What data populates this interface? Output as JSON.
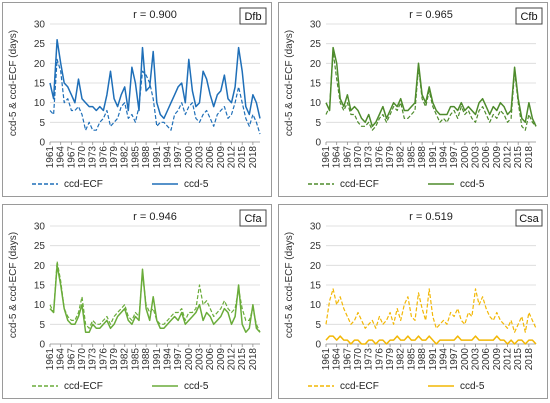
{
  "chart_data": [
    {
      "type": "line",
      "zone": "Dfb",
      "annotation": "r = 0.900",
      "ylabel": "ccd-5 & ccd-ECF (days)",
      "ylim": [
        0,
        30
      ],
      "yticks": [
        0,
        5,
        10,
        15,
        20,
        25,
        30
      ],
      "xticks": [
        1961,
        1964,
        1967,
        1970,
        1973,
        1976,
        1979,
        1982,
        1985,
        1988,
        1991,
        1994,
        1997,
        2000,
        2003,
        2006,
        2009,
        2012,
        2015,
        2018
      ],
      "x_start": 1961,
      "x_end": 2020,
      "color": "#1f6fb8",
      "series": [
        {
          "name": "ccd-ECF",
          "dash": true,
          "values": [
            8,
            7,
            21,
            18,
            10,
            11,
            8,
            8,
            9,
            7,
            3,
            5,
            3,
            3,
            5,
            6,
            8,
            4,
            5,
            6,
            9,
            10,
            6,
            7,
            5,
            9,
            18,
            17,
            15,
            11,
            4,
            5,
            5,
            4,
            3,
            7,
            8,
            10,
            7,
            9,
            10,
            6,
            5,
            7,
            8,
            6,
            4,
            7,
            8,
            9,
            6,
            7,
            10,
            14,
            10,
            6,
            4,
            7,
            5,
            2
          ]
        },
        {
          "name": "ccd-5",
          "dash": false,
          "values": [
            15,
            11,
            26,
            20,
            15,
            14,
            12,
            10,
            16,
            11,
            10,
            9,
            9,
            8,
            9,
            8,
            12,
            18,
            11,
            9,
            12,
            14,
            8,
            19,
            15,
            8,
            24,
            13,
            14,
            23,
            10,
            7,
            6,
            8,
            10,
            12,
            14,
            15,
            10,
            21,
            13,
            9,
            10,
            18,
            16,
            12,
            9,
            12,
            13,
            17,
            11,
            10,
            14,
            24,
            18,
            9,
            7,
            12,
            10,
            6
          ]
        }
      ],
      "legend": [
        "ccd-ECF",
        "ccd-5"
      ]
    },
    {
      "type": "line",
      "zone": "Cfb",
      "annotation": "r = 0.965",
      "ylabel": "ccd-5 & ccd-ECF (days)",
      "ylim": [
        0,
        30
      ],
      "yticks": [
        0,
        5,
        10,
        15,
        20,
        25,
        30
      ],
      "xticks": [
        1961,
        1964,
        1967,
        1970,
        1973,
        1976,
        1979,
        1982,
        1985,
        1988,
        1991,
        1994,
        1997,
        2000,
        2003,
        2006,
        2009,
        2012,
        2015,
        2018
      ],
      "x_start": 1961,
      "x_end": 2020,
      "color": "#4e8b2c",
      "series": [
        {
          "name": "ccd-ECF",
          "dash": true,
          "values": [
            7,
            9,
            23,
            16,
            10,
            8,
            10,
            7,
            7,
            5,
            4,
            4,
            5,
            3,
            4,
            6,
            7,
            5,
            7,
            9,
            8,
            10,
            6,
            6,
            7,
            8,
            19,
            11,
            9,
            13,
            9,
            7,
            5,
            6,
            5,
            7,
            8,
            6,
            9,
            7,
            8,
            6,
            5,
            8,
            9,
            7,
            5,
            7,
            6,
            8,
            7,
            5,
            6,
            18,
            10,
            4,
            3,
            7,
            5,
            4
          ]
        },
        {
          "name": "ccd-5",
          "dash": false,
          "values": [
            10,
            8,
            24,
            20,
            11,
            9,
            12,
            8,
            9,
            8,
            6,
            5,
            7,
            4,
            5,
            7,
            9,
            6,
            8,
            10,
            9,
            11,
            8,
            8,
            9,
            10,
            20,
            12,
            10,
            14,
            10,
            8,
            7,
            7,
            7,
            9,
            9,
            8,
            10,
            8,
            9,
            8,
            7,
            10,
            11,
            9,
            7,
            9,
            8,
            10,
            9,
            7,
            8,
            19,
            11,
            6,
            5,
            10,
            6,
            4
          ]
        }
      ],
      "legend": [
        "ccd-ECF",
        "ccd-5"
      ]
    },
    {
      "type": "line",
      "zone": "Cfa",
      "annotation": "r = 0.946",
      "ylabel": "ccd-5 & ccd-ECF (days)",
      "ylim": [
        0,
        30
      ],
      "yticks": [
        0,
        5,
        10,
        15,
        20,
        25,
        30
      ],
      "xticks": [
        1961,
        1964,
        1967,
        1970,
        1973,
        1976,
        1979,
        1982,
        1985,
        1988,
        1991,
        1994,
        1997,
        2000,
        2003,
        2006,
        2009,
        2012,
        2015,
        2018
      ],
      "x_start": 1961,
      "x_end": 2020,
      "color": "#6aac3a",
      "series": [
        {
          "name": "ccd-ECF",
          "dash": true,
          "values": [
            10,
            8,
            21,
            16,
            9,
            7,
            6,
            6,
            8,
            12,
            5,
            4,
            6,
            5,
            5,
            6,
            7,
            5,
            7,
            8,
            9,
            10,
            7,
            6,
            8,
            7,
            18,
            10,
            8,
            9,
            6,
            5,
            5,
            6,
            7,
            8,
            8,
            9,
            6,
            8,
            8,
            9,
            15,
            10,
            11,
            9,
            7,
            8,
            9,
            11,
            9,
            8,
            9,
            14,
            9,
            6,
            6,
            9,
            5,
            3
          ]
        },
        {
          "name": "ccd-5",
          "dash": false,
          "values": [
            9,
            8,
            20,
            15,
            9,
            6,
            5,
            5,
            7,
            10,
            3,
            3,
            5,
            4,
            4,
            5,
            6,
            4,
            5,
            7,
            8,
            9,
            6,
            5,
            7,
            6,
            19,
            9,
            6,
            12,
            6,
            4,
            4,
            5,
            6,
            7,
            6,
            8,
            5,
            6,
            7,
            8,
            10,
            6,
            8,
            7,
            5,
            6,
            7,
            9,
            8,
            5,
            7,
            15,
            5,
            3,
            4,
            10,
            4,
            3
          ]
        }
      ],
      "legend": [
        "ccd-ECF",
        "ccd-5"
      ]
    },
    {
      "type": "line",
      "zone": "Csa",
      "annotation": "r = 0.519",
      "ylabel": "ccd-5 & ccd-ECF (days)",
      "ylim": [
        0,
        30
      ],
      "yticks": [
        0,
        5,
        10,
        15,
        20,
        25,
        30
      ],
      "xticks": [
        1961,
        1964,
        1967,
        1970,
        1973,
        1976,
        1979,
        1982,
        1985,
        1988,
        1991,
        1994,
        1997,
        2000,
        2003,
        2006,
        2009,
        2012,
        2015,
        2018
      ],
      "x_start": 1961,
      "x_end": 2020,
      "color": "#f2b705",
      "series": [
        {
          "name": "ccd-ECF",
          "dash": true,
          "values": [
            5,
            11,
            14,
            10,
            12,
            9,
            7,
            5,
            6,
            8,
            6,
            4,
            5,
            6,
            4,
            7,
            5,
            6,
            8,
            5,
            9,
            6,
            10,
            12,
            7,
            6,
            13,
            9,
            6,
            14,
            7,
            4,
            5,
            6,
            5,
            8,
            7,
            9,
            6,
            5,
            8,
            7,
            14,
            10,
            12,
            9,
            7,
            6,
            8,
            6,
            5,
            4,
            6,
            3,
            5,
            7,
            3,
            8,
            6,
            4
          ]
        },
        {
          "name": "ccd-5",
          "dash": false,
          "values": [
            1,
            2,
            2,
            1,
            2,
            1,
            1,
            0,
            1,
            1,
            0,
            0,
            1,
            1,
            0,
            1,
            1,
            0,
            1,
            1,
            2,
            1,
            1,
            2,
            1,
            1,
            2,
            1,
            1,
            2,
            1,
            0,
            1,
            1,
            1,
            1,
            1,
            2,
            1,
            1,
            1,
            1,
            2,
            1,
            1,
            1,
            1,
            1,
            2,
            1,
            1,
            0,
            1,
            0,
            1,
            1,
            0,
            1,
            1,
            0
          ]
        }
      ],
      "legend": [
        "ccd-ECF",
        "ccd-5"
      ]
    }
  ]
}
